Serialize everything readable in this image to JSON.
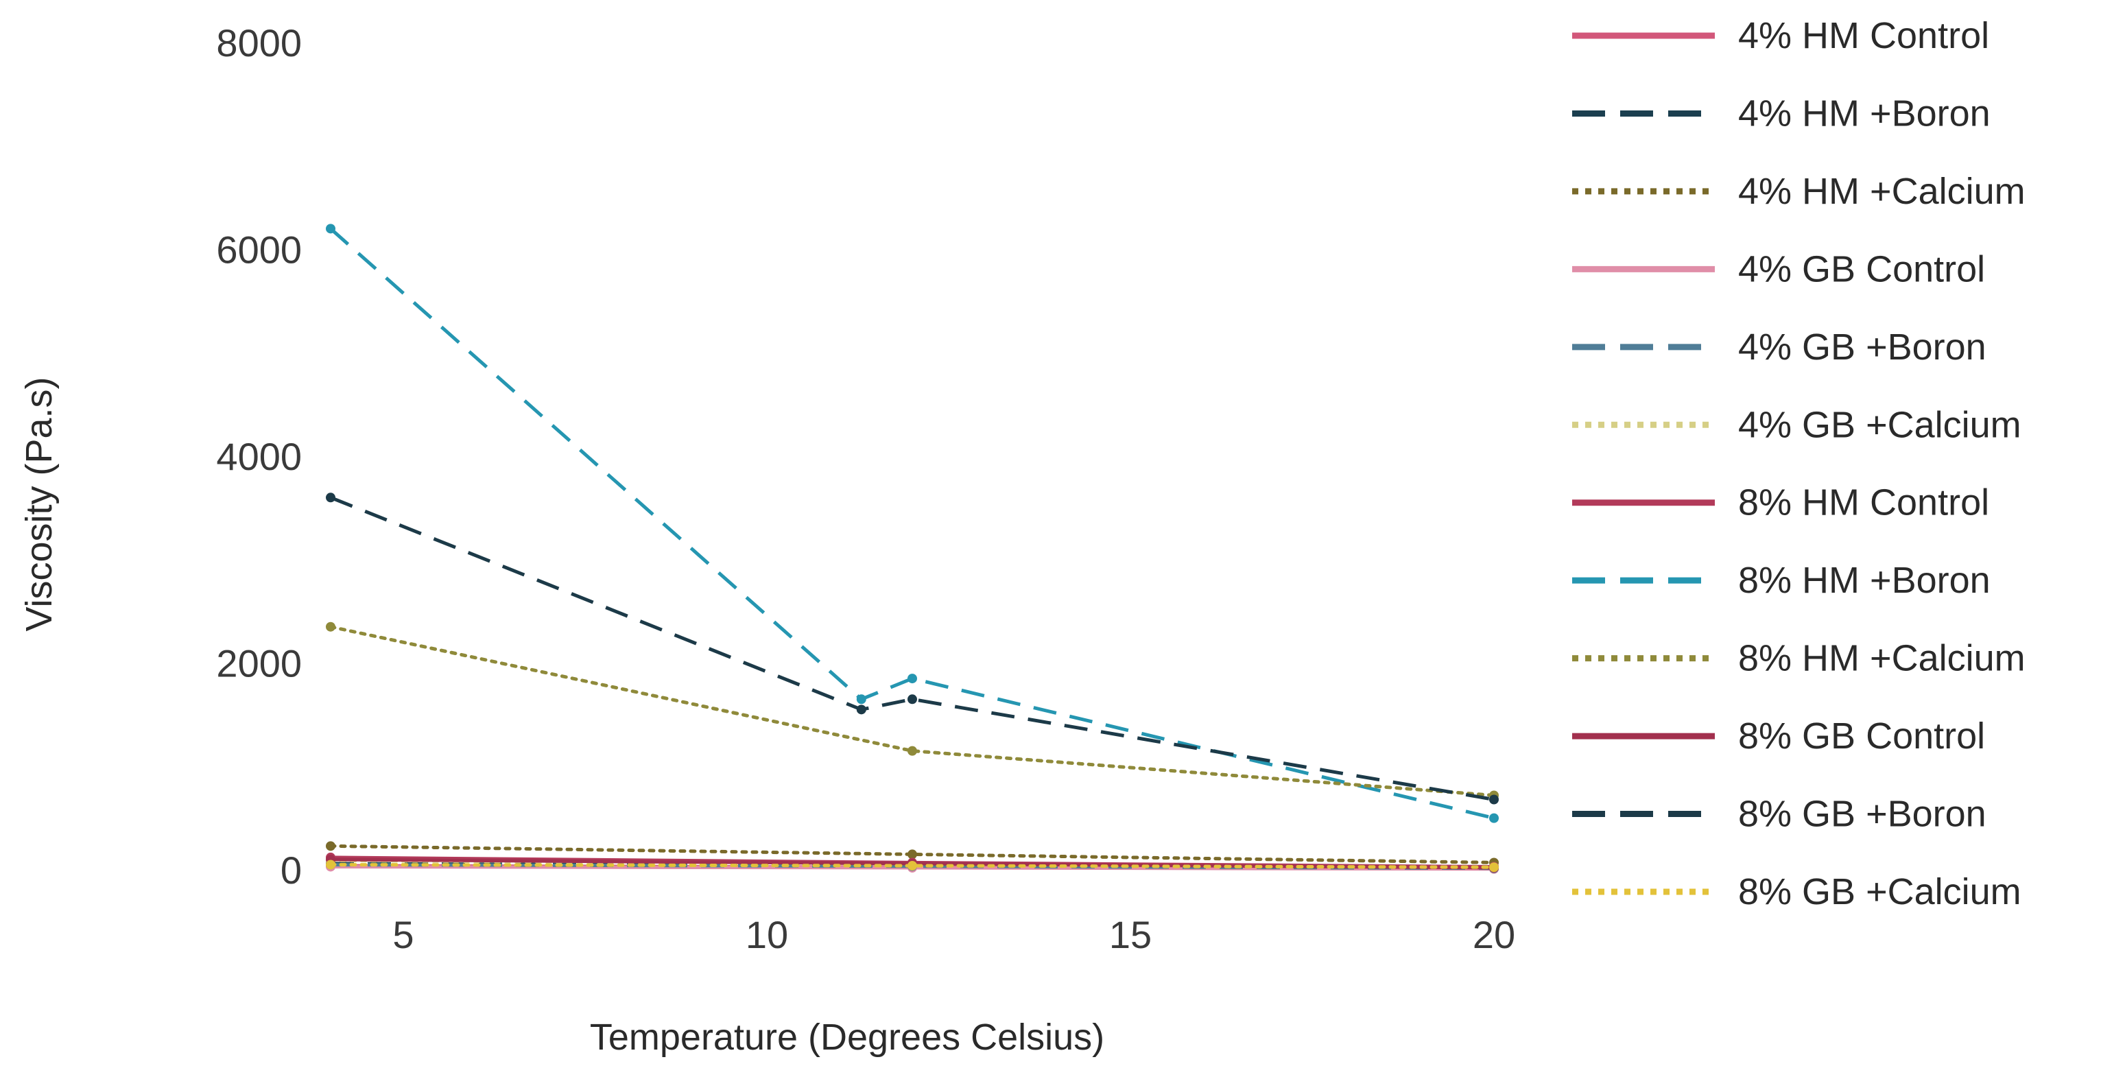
{
  "chart_data": {
    "type": "line",
    "title": "",
    "xlabel": "Temperature (Degrees Celsius)",
    "ylabel": "Viscosity (Pa.s)",
    "xlim": [
      4,
      20
    ],
    "ylim": [
      0,
      8000
    ],
    "xticks": [
      5,
      10,
      15,
      20
    ],
    "yticks": [
      0,
      2000,
      4000,
      6000,
      8000
    ],
    "legend_position": "right",
    "series": [
      {
        "name": "4% HM Control",
        "color": "#d2577a",
        "dash": "solid",
        "x": [
          4,
          12,
          20
        ],
        "y": [
          40,
          25,
          10
        ]
      },
      {
        "name": "4% HM +Boron",
        "color": "#1b3f4f",
        "dash": "dashed",
        "x": [
          4,
          12,
          20
        ],
        "y": [
          60,
          40,
          20
        ]
      },
      {
        "name": "4% HM +Calcium",
        "color": "#7a6a2a",
        "dash": "dotted",
        "x": [
          4,
          12,
          20
        ],
        "y": [
          230,
          150,
          70
        ]
      },
      {
        "name": "4% GB Control",
        "color": "#e08ea8",
        "dash": "solid",
        "x": [
          4,
          12,
          20
        ],
        "y": [
          30,
          20,
          8
        ]
      },
      {
        "name": "4% GB +Boron",
        "color": "#4f7d97",
        "dash": "dashed",
        "x": [
          4,
          12,
          20
        ],
        "y": [
          50,
          35,
          15
        ]
      },
      {
        "name": "4% GB +Calcium",
        "color": "#d6cf86",
        "dash": "dotted",
        "x": [
          4,
          12,
          20
        ],
        "y": [
          90,
          60,
          30
        ]
      },
      {
        "name": "8% HM Control",
        "color": "#b23a5a",
        "dash": "solid",
        "x": [
          4,
          12,
          20
        ],
        "y": [
          120,
          70,
          30
        ]
      },
      {
        "name": "8% HM +Boron",
        "color": "#2596b1",
        "dash": "dashed",
        "x": [
          4,
          11.3,
          12,
          20
        ],
        "y": [
          6200,
          1650,
          1850,
          500
        ]
      },
      {
        "name": "8% HM +Calcium",
        "color": "#8f8a3a",
        "dash": "dotted",
        "x": [
          4,
          12,
          20
        ],
        "y": [
          2350,
          1150,
          720
        ]
      },
      {
        "name": "8% GB Control",
        "color": "#a2304e",
        "dash": "solid",
        "x": [
          4,
          12,
          20
        ],
        "y": [
          100,
          60,
          20
        ]
      },
      {
        "name": "8% GB +Boron",
        "color": "#1c3a48",
        "dash": "dashed",
        "x": [
          4,
          11.3,
          12,
          20
        ],
        "y": [
          3600,
          1550,
          1650,
          680
        ]
      },
      {
        "name": "8% GB +Calcium",
        "color": "#e3c23a",
        "dash": "dotted",
        "x": [
          4,
          12,
          20
        ],
        "y": [
          50,
          40,
          25
        ]
      }
    ]
  }
}
